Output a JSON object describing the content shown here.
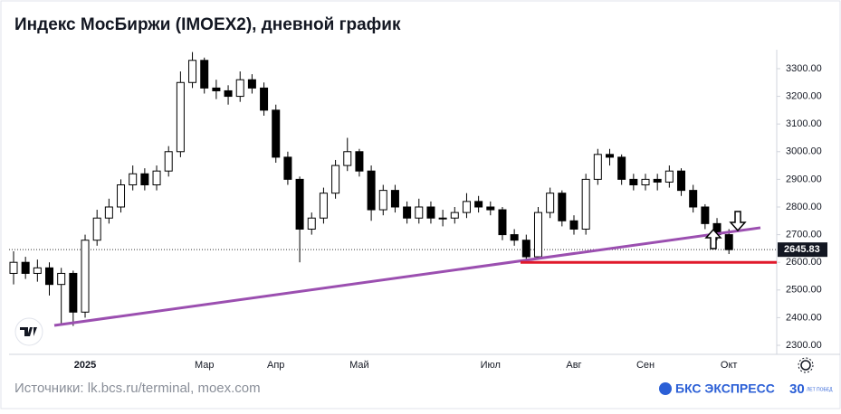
{
  "chart_data": {
    "type": "candlestick",
    "title": "Индекс МосБиржи (IMOEX2), дневной график",
    "categories": [
      null,
      null,
      null,
      null,
      null,
      null,
      "2025",
      null,
      null,
      null,
      null,
      null,
      null,
      null,
      null,
      null,
      "Мар",
      null,
      null,
      null,
      null,
      null,
      "Апр",
      null,
      null,
      null,
      null,
      null,
      null,
      "Май",
      null,
      null,
      null,
      null,
      null,
      null,
      null,
      null,
      null,
      null,
      "Июл",
      null,
      null,
      null,
      null,
      null,
      null,
      "Авг",
      null,
      null,
      null,
      null,
      null,
      "Сен",
      null,
      null,
      null,
      null,
      null,
      null,
      "Окт"
    ],
    "open": [
      2560,
      2600,
      2560,
      2580,
      2520,
      2560,
      2420,
      2680,
      2760,
      2800,
      2880,
      2920,
      2880,
      2930,
      3000,
      3250,
      3330,
      3230,
      3220,
      3200,
      3260,
      3230,
      3150,
      2980,
      2900,
      2720,
      2760,
      2850,
      2950,
      3000,
      2930,
      2790,
      2860,
      2800,
      2760,
      2800,
      2760,
      2760,
      2780,
      2820,
      2800,
      2790,
      2700,
      2680,
      2620,
      2780,
      2850,
      2750,
      2720,
      2900,
      2990,
      2980,
      2900,
      2880,
      2900,
      2890,
      2930,
      2860,
      2800,
      2740,
      2700
    ],
    "high": [
      2640,
      2620,
      2610,
      2600,
      2580,
      2570,
      2700,
      2790,
      2830,
      2900,
      2950,
      2940,
      2950,
      3020,
      3290,
      3360,
      3340,
      3260,
      3240,
      3290,
      3280,
      3250,
      3170,
      3000,
      2910,
      2780,
      2870,
      2970,
      3050,
      3010,
      2950,
      2880,
      2880,
      2820,
      2830,
      2820,
      2790,
      2800,
      2850,
      2840,
      2820,
      2800,
      2720,
      2700,
      2800,
      2870,
      2860,
      2770,
      2920,
      3010,
      3010,
      2990,
      2920,
      2920,
      2920,
      2950,
      2940,
      2880,
      2810,
      2760,
      2720
    ],
    "low": [
      2520,
      2540,
      2530,
      2480,
      2380,
      2370,
      2400,
      2660,
      2740,
      2780,
      2860,
      2860,
      2860,
      2910,
      2980,
      3230,
      3210,
      3190,
      3170,
      3180,
      3210,
      3130,
      2960,
      2880,
      2600,
      2700,
      2740,
      2830,
      2930,
      2910,
      2750,
      2770,
      2780,
      2740,
      2740,
      2740,
      2730,
      2740,
      2760,
      2780,
      2770,
      2680,
      2660,
      2600,
      2610,
      2760,
      2730,
      2700,
      2700,
      2880,
      2950,
      2880,
      2860,
      2860,
      2860,
      2870,
      2840,
      2780,
      2720,
      2680,
      2630
    ],
    "close": [
      2600,
      2560,
      2580,
      2520,
      2560,
      2420,
      2680,
      2760,
      2800,
      2880,
      2920,
      2880,
      2930,
      3000,
      3250,
      3330,
      3230,
      3220,
      3200,
      3260,
      3230,
      3150,
      2980,
      2900,
      2720,
      2760,
      2850,
      2950,
      3000,
      2930,
      2790,
      2860,
      2800,
      2760,
      2800,
      2760,
      2760,
      2780,
      2820,
      2800,
      2790,
      2700,
      2680,
      2620,
      2780,
      2850,
      2750,
      2720,
      2900,
      2990,
      2980,
      2900,
      2880,
      2900,
      2890,
      2930,
      2860,
      2800,
      2740,
      2700,
      2645.83
    ],
    "ylim": [
      2270,
      3360
    ],
    "yticks": [
      {
        "value": 2300,
        "label": "2300.00"
      },
      {
        "value": 2400,
        "label": "2400.00"
      },
      {
        "value": 2500,
        "label": "2500.00"
      },
      {
        "value": 2600,
        "label": "2600.00"
      },
      {
        "value": 2700,
        "label": "2700.00"
      },
      {
        "value": 2800,
        "label": "2800.00"
      },
      {
        "value": 2900,
        "label": "2900.00"
      },
      {
        "value": 3000,
        "label": "3000.00"
      },
      {
        "value": 3100,
        "label": "3100.00"
      },
      {
        "value": 3200,
        "label": "3200.00"
      },
      {
        "value": 3300,
        "label": "3300.00"
      }
    ],
    "last_price": 2645.83,
    "trendline": {
      "values": [
        2372,
        2725
      ],
      "color": "#9b4fb0"
    },
    "support": {
      "value": 2600,
      "color": "#e0192b"
    },
    "up_color": "#ffffff",
    "down_color": "#000000"
  },
  "footer": {
    "source": "Источники: lk.bcs.ru/terminal, moex.com",
    "logo": "БКС ЭКСПРЕСС",
    "badge_number": "30",
    "badge_text": "ЛЕТ ПОБЕД"
  }
}
